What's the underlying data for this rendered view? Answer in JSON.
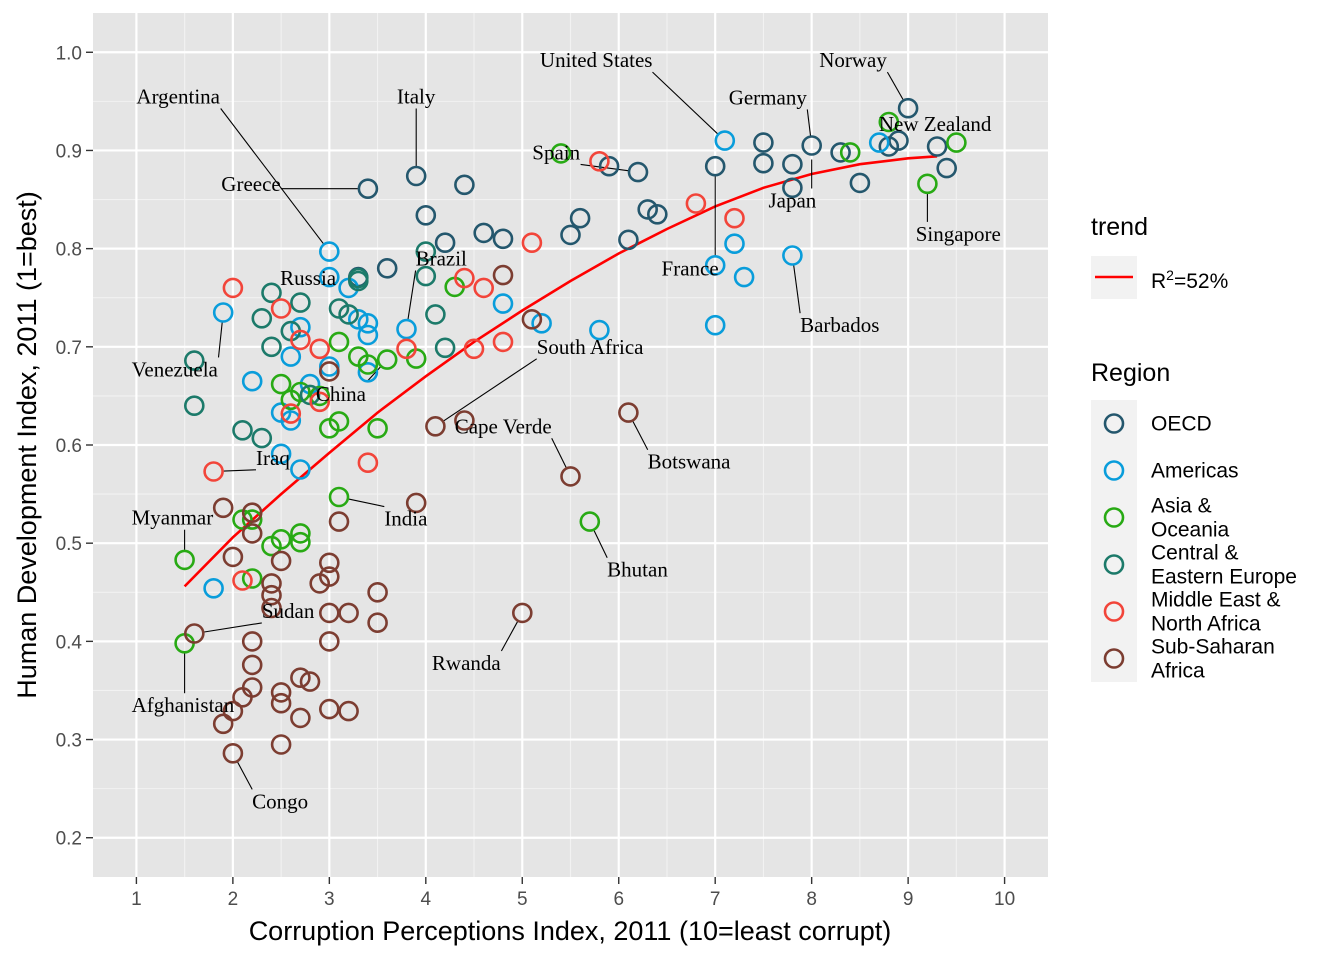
{
  "chart_data": {
    "type": "scatter",
    "xlabel": "Corruption Perceptions Index, 2011 (10=least corrupt)",
    "ylabel": "Human Development Index, 2011 (1=best)",
    "xlim": [
      0.55,
      10.45
    ],
    "ylim": [
      0.16,
      1.04
    ],
    "x_ticks": [
      "1",
      "2",
      "3",
      "4",
      "5",
      "6",
      "7",
      "8",
      "9",
      "10"
    ],
    "y_ticks": [
      "0.2",
      "0.3",
      "0.4",
      "0.5",
      "0.6",
      "0.7",
      "0.8",
      "0.9",
      "1.0"
    ],
    "grid": true,
    "legend": {
      "placement": "right",
      "trend_title": "trend",
      "trend_label_base": "R",
      "trend_label_sup": "2",
      "trend_label_rest": "=52%",
      "trend_color": "#ff0000",
      "region_title": "Region",
      "regions": [
        {
          "key": "OECD",
          "lines": [
            "OECD"
          ],
          "color": "#24576d"
        },
        {
          "key": "Americas",
          "lines": [
            "Americas"
          ],
          "color": "#099ddb"
        },
        {
          "key": "Asia",
          "lines": [
            "Asia &",
            "Oceania"
          ],
          "color": "#28aa14"
        },
        {
          "key": "CEE",
          "lines": [
            "Central &",
            "Eastern Europe"
          ],
          "color": "#1c7a6a"
        },
        {
          "key": "MENA",
          "lines": [
            "Middle East &",
            "North Africa"
          ],
          "color": "#f2453a"
        },
        {
          "key": "SSA",
          "lines": [
            "Sub-Saharan",
            "Africa"
          ],
          "color": "#7c3d31"
        }
      ]
    },
    "trend": {
      "x": [
        1.5,
        2.0,
        2.5,
        3.0,
        3.5,
        4.0,
        4.5,
        5.0,
        5.5,
        6.0,
        6.5,
        7.0,
        7.5,
        8.0,
        8.5,
        9.0,
        9.3
      ],
      "y": [
        0.456,
        0.506,
        0.55,
        0.592,
        0.633,
        0.67,
        0.705,
        0.737,
        0.767,
        0.795,
        0.82,
        0.843,
        0.862,
        0.876,
        0.886,
        0.892,
        0.894
      ]
    },
    "series": [
      {
        "name": "OECD",
        "points": [
          [
            3.4,
            0.861
          ],
          [
            3.9,
            0.874
          ],
          [
            4.4,
            0.865
          ],
          [
            4.0,
            0.834
          ],
          [
            4.2,
            0.806
          ],
          [
            4.6,
            0.816
          ],
          [
            4.8,
            0.81
          ],
          [
            5.5,
            0.814
          ],
          [
            5.6,
            0.831
          ],
          [
            5.9,
            0.884
          ],
          [
            6.2,
            0.878
          ],
          [
            6.1,
            0.809
          ],
          [
            6.3,
            0.84
          ],
          [
            6.4,
            0.835
          ],
          [
            7.0,
            0.884
          ],
          [
            7.5,
            0.908
          ],
          [
            7.5,
            0.887
          ],
          [
            7.8,
            0.886
          ],
          [
            7.8,
            0.862
          ],
          [
            8.0,
            0.905
          ],
          [
            8.3,
            0.898
          ],
          [
            8.5,
            0.867
          ],
          [
            8.8,
            0.904
          ],
          [
            8.9,
            0.91
          ],
          [
            9.0,
            0.943
          ],
          [
            9.3,
            0.904
          ],
          [
            9.4,
            0.882
          ],
          [
            3.6,
            0.78
          ],
          [
            3.3,
            0.771
          ]
        ]
      },
      {
        "name": "Americas",
        "points": [
          [
            3.0,
            0.797
          ],
          [
            3.2,
            0.76
          ],
          [
            3.3,
            0.728
          ],
          [
            3.4,
            0.724
          ],
          [
            3.4,
            0.712
          ],
          [
            3.4,
            0.674
          ],
          [
            2.8,
            0.662
          ],
          [
            3.0,
            0.68
          ],
          [
            2.6,
            0.69
          ],
          [
            2.5,
            0.633
          ],
          [
            2.6,
            0.625
          ],
          [
            2.7,
            0.72
          ],
          [
            2.7,
            0.575
          ],
          [
            2.5,
            0.591
          ],
          [
            2.2,
            0.665
          ],
          [
            1.9,
            0.735
          ],
          [
            1.8,
            0.454
          ],
          [
            3.8,
            0.718
          ],
          [
            4.8,
            0.744
          ],
          [
            5.2,
            0.724
          ],
          [
            5.8,
            0.717
          ],
          [
            7.1,
            0.91
          ],
          [
            7.0,
            0.783
          ],
          [
            7.0,
            0.722
          ],
          [
            7.2,
            0.805
          ],
          [
            7.3,
            0.771
          ],
          [
            7.8,
            0.793
          ],
          [
            8.7,
            0.908
          ],
          [
            3.0,
            0.771
          ]
        ]
      },
      {
        "name": "Asia & Oceania",
        "points": [
          [
            1.5,
            0.483
          ],
          [
            1.5,
            0.398
          ],
          [
            2.1,
            0.524
          ],
          [
            2.2,
            0.524
          ],
          [
            2.2,
            0.464
          ],
          [
            2.4,
            0.497
          ],
          [
            2.5,
            0.504
          ],
          [
            2.7,
            0.501
          ],
          [
            2.7,
            0.51
          ],
          [
            3.1,
            0.547
          ],
          [
            3.0,
            0.617
          ],
          [
            3.1,
            0.624
          ],
          [
            3.5,
            0.617
          ],
          [
            3.3,
            0.69
          ],
          [
            3.4,
            0.682
          ],
          [
            3.6,
            0.687
          ],
          [
            3.9,
            0.688
          ],
          [
            3.1,
            0.705
          ],
          [
            2.9,
            0.65
          ],
          [
            2.6,
            0.646
          ],
          [
            2.5,
            0.662
          ],
          [
            2.7,
            0.654
          ],
          [
            4.3,
            0.761
          ],
          [
            5.4,
            0.897
          ],
          [
            5.7,
            0.522
          ],
          [
            8.4,
            0.898
          ],
          [
            8.8,
            0.929
          ],
          [
            9.2,
            0.866
          ],
          [
            9.5,
            0.908
          ]
        ]
      },
      {
        "name": "Central & Eastern Europe",
        "points": [
          [
            1.6,
            0.686
          ],
          [
            1.6,
            0.64
          ],
          [
            2.1,
            0.615
          ],
          [
            2.3,
            0.607
          ],
          [
            2.3,
            0.729
          ],
          [
            2.4,
            0.755
          ],
          [
            2.4,
            0.7
          ],
          [
            2.6,
            0.716
          ],
          [
            2.7,
            0.745
          ],
          [
            3.1,
            0.739
          ],
          [
            3.2,
            0.733
          ],
          [
            3.3,
            0.77
          ],
          [
            3.3,
            0.767
          ],
          [
            4.0,
            0.797
          ],
          [
            4.0,
            0.772
          ],
          [
            4.1,
            0.733
          ],
          [
            4.2,
            0.699
          ],
          [
            2.8,
            0.651
          ]
        ]
      },
      {
        "name": "Middle East & North Africa",
        "points": [
          [
            1.8,
            0.573
          ],
          [
            2.0,
            0.76
          ],
          [
            2.1,
            0.462
          ],
          [
            2.5,
            0.739
          ],
          [
            2.6,
            0.632
          ],
          [
            2.7,
            0.707
          ],
          [
            2.9,
            0.698
          ],
          [
            2.9,
            0.644
          ],
          [
            3.4,
            0.582
          ],
          [
            3.8,
            0.698
          ],
          [
            4.4,
            0.77
          ],
          [
            4.5,
            0.698
          ],
          [
            4.6,
            0.76
          ],
          [
            4.8,
            0.705
          ],
          [
            5.1,
            0.806
          ],
          [
            5.8,
            0.889
          ],
          [
            6.8,
            0.846
          ],
          [
            7.2,
            0.831
          ]
        ]
      },
      {
        "name": "Sub-Saharan Africa",
        "points": [
          [
            1.6,
            0.408
          ],
          [
            1.9,
            0.316
          ],
          [
            1.9,
            0.536
          ],
          [
            2.0,
            0.286
          ],
          [
            2.0,
            0.329
          ],
          [
            2.0,
            0.486
          ],
          [
            2.1,
            0.343
          ],
          [
            2.2,
            0.353
          ],
          [
            2.2,
            0.376
          ],
          [
            2.2,
            0.4
          ],
          [
            2.2,
            0.51
          ],
          [
            2.2,
            0.531
          ],
          [
            2.4,
            0.459
          ],
          [
            2.4,
            0.447
          ],
          [
            2.4,
            0.434
          ],
          [
            2.5,
            0.348
          ],
          [
            2.5,
            0.337
          ],
          [
            2.5,
            0.295
          ],
          [
            2.5,
            0.482
          ],
          [
            2.7,
            0.363
          ],
          [
            2.7,
            0.322
          ],
          [
            2.8,
            0.359
          ],
          [
            2.9,
            0.459
          ],
          [
            3.0,
            0.48
          ],
          [
            3.0,
            0.466
          ],
          [
            3.0,
            0.429
          ],
          [
            3.0,
            0.4
          ],
          [
            3.0,
            0.331
          ],
          [
            3.0,
            0.675
          ],
          [
            3.1,
            0.522
          ],
          [
            3.2,
            0.429
          ],
          [
            3.2,
            0.329
          ],
          [
            3.5,
            0.45
          ],
          [
            3.5,
            0.419
          ],
          [
            3.9,
            0.541
          ],
          [
            4.1,
            0.619
          ],
          [
            4.4,
            0.625
          ],
          [
            4.8,
            0.773
          ],
          [
            5.1,
            0.728
          ],
          [
            5.5,
            0.568
          ],
          [
            5.0,
            0.429
          ],
          [
            6.1,
            0.633
          ]
        ]
      }
    ],
    "annotations": [
      {
        "text": "Argentina",
        "x": 3.0,
        "y": 0.797,
        "lx": 1.0,
        "ly": 0.955,
        "anchor": "start"
      },
      {
        "text": "Italy",
        "x": 3.9,
        "y": 0.874,
        "lx": 3.9,
        "ly": 0.955,
        "anchor": "middle"
      },
      {
        "text": "United States",
        "x": 7.1,
        "y": 0.91,
        "lx": 6.35,
        "ly": 0.992,
        "anchor": "end"
      },
      {
        "text": "Norway",
        "x": 9.0,
        "y": 0.943,
        "lx": 8.78,
        "ly": 0.992,
        "anchor": "end"
      },
      {
        "text": "Germany",
        "x": 8.0,
        "y": 0.905,
        "lx": 7.95,
        "ly": 0.954,
        "anchor": "end"
      },
      {
        "text": "New Zealand",
        "x": 9.5,
        "y": 0.908,
        "lx": 9.28,
        "ly": 0.927,
        "anchor": "middle"
      },
      {
        "text": "Spain",
        "x": 6.2,
        "y": 0.878,
        "lx": 5.6,
        "ly": 0.898,
        "anchor": "end"
      },
      {
        "text": "Greece",
        "x": 3.4,
        "y": 0.861,
        "lx": 1.88,
        "ly": 0.866,
        "anchor": "start"
      },
      {
        "text": "Japan",
        "x": 8.0,
        "y": 0.901,
        "lx": 7.8,
        "ly": 0.849,
        "anchor": "middle"
      },
      {
        "text": "Singapore",
        "x": 9.2,
        "y": 0.866,
        "lx": 9.52,
        "ly": 0.815,
        "anchor": "middle"
      },
      {
        "text": "France",
        "x": 7.0,
        "y": 0.884,
        "lx": 6.74,
        "ly": 0.78,
        "anchor": "middle"
      },
      {
        "text": "Brazil",
        "x": 3.8,
        "y": 0.718,
        "lx": 4.16,
        "ly": 0.79,
        "anchor": "middle"
      },
      {
        "text": "Russia",
        "x": 2.4,
        "y": 0.755,
        "lx": 2.78,
        "ly": 0.77,
        "anchor": "middle"
      },
      {
        "text": "Barbados",
        "x": 7.8,
        "y": 0.793,
        "lx": 7.88,
        "ly": 0.722,
        "anchor": "start"
      },
      {
        "text": "South Africa",
        "x": 4.1,
        "y": 0.619,
        "lx": 5.15,
        "ly": 0.7,
        "anchor": "start"
      },
      {
        "text": "Venezuela",
        "x": 1.9,
        "y": 0.735,
        "lx": 0.95,
        "ly": 0.677,
        "anchor": "start"
      },
      {
        "text": "China",
        "x": 3.6,
        "y": 0.687,
        "lx": 2.86,
        "ly": 0.652,
        "anchor": "start"
      },
      {
        "text": "Cape Verde",
        "x": 5.5,
        "y": 0.568,
        "lx": 4.3,
        "ly": 0.619,
        "anchor": "start"
      },
      {
        "text": "Botswana",
        "x": 6.1,
        "y": 0.633,
        "lx": 6.3,
        "ly": 0.583,
        "anchor": "start"
      },
      {
        "text": "Iraq",
        "x": 1.8,
        "y": 0.573,
        "lx": 2.24,
        "ly": 0.587,
        "anchor": "start"
      },
      {
        "text": "Myanmar",
        "x": 1.5,
        "y": 0.483,
        "lx": 0.95,
        "ly": 0.526,
        "anchor": "start"
      },
      {
        "text": "India",
        "x": 3.1,
        "y": 0.547,
        "lx": 3.57,
        "ly": 0.525,
        "anchor": "start"
      },
      {
        "text": "Bhutan",
        "x": 5.7,
        "y": 0.522,
        "lx": 5.88,
        "ly": 0.473,
        "anchor": "start"
      },
      {
        "text": "Sudan",
        "x": 1.6,
        "y": 0.408,
        "lx": 2.3,
        "ly": 0.431,
        "anchor": "start"
      },
      {
        "text": "Rwanda",
        "x": 5.0,
        "y": 0.429,
        "lx": 4.42,
        "ly": 0.378,
        "anchor": "middle"
      },
      {
        "text": "Afghanistan",
        "x": 1.5,
        "y": 0.398,
        "lx": 0.95,
        "ly": 0.335,
        "anchor": "start"
      },
      {
        "text": "Congo",
        "x": 2.0,
        "y": 0.286,
        "lx": 2.2,
        "ly": 0.237,
        "anchor": "start"
      }
    ]
  }
}
